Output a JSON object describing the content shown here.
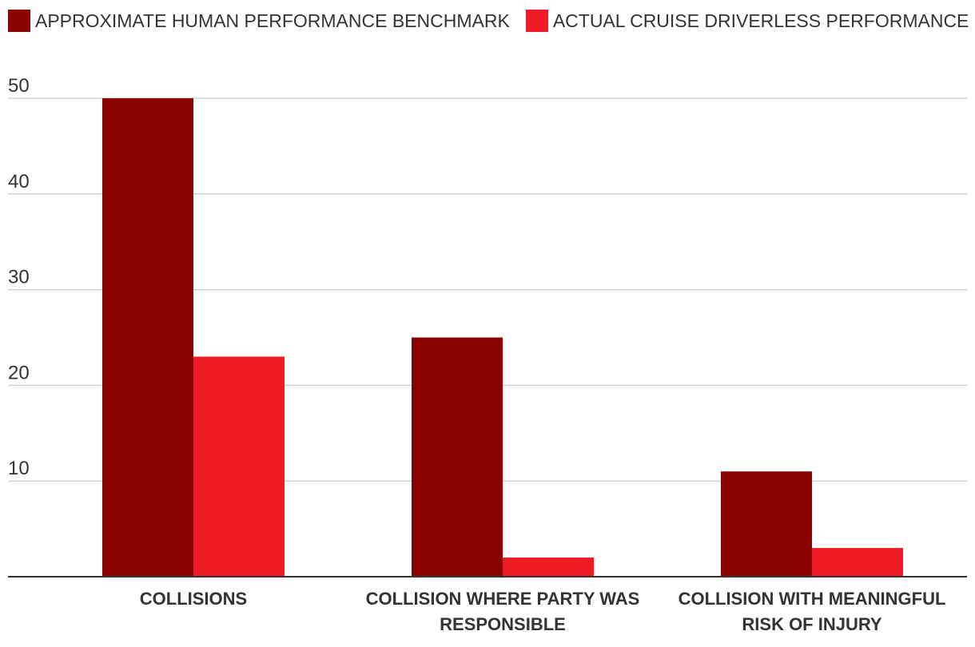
{
  "chart_data": {
    "type": "bar",
    "categories": [
      "COLLISIONS",
      "COLLISION WHERE PARTY WAS RESPONSIBLE",
      "COLLISION WITH MEANINGFUL RISK OF INJURY"
    ],
    "category_lines": [
      [
        "COLLISIONS"
      ],
      [
        "COLLISION WHERE PARTY WAS",
        "RESPONSIBLE"
      ],
      [
        "COLLISION WITH MEANINGFUL",
        "RISK OF INJURY"
      ]
    ],
    "series": [
      {
        "name": "APPROXIMATE HUMAN PERFORMANCE BENCHMARK",
        "color": "#8b0000",
        "values": [
          50,
          25,
          11
        ]
      },
      {
        "name": "ACTUAL CRUISE DRIVERLESS PERFORMANCE",
        "color": "#ed1c24",
        "values": [
          23,
          2,
          3
        ]
      }
    ],
    "y_ticks": [
      10,
      20,
      30,
      40,
      50
    ],
    "ylim": [
      0,
      50
    ],
    "grid": true,
    "legend_position": "top-left",
    "title": "",
    "xlabel": "",
    "ylabel": ""
  }
}
